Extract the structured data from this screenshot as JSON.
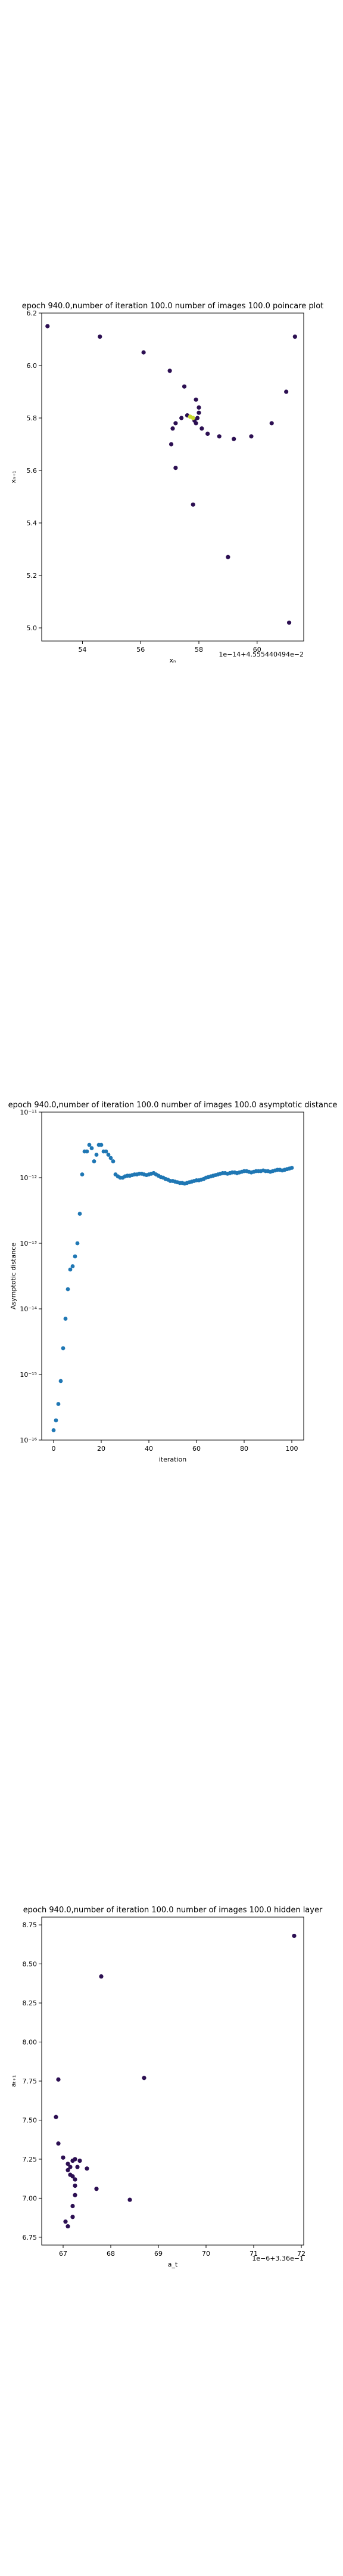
{
  "chart_data": [
    {
      "type": "scatter",
      "title": "epoch 940.0,number of iteration 100.0  number of images 100.0 poincare plot",
      "xlabel": "xₙ",
      "ylabel": "xₙ₊₁",
      "offset_text": "1e−14+4.555440494e−2",
      "xlim": [
        52.6,
        61.6
      ],
      "ylim": [
        4.95,
        6.2
      ],
      "xticks": [
        54,
        56,
        58,
        60
      ],
      "yticks": [
        5.0,
        5.2,
        5.4,
        5.6,
        5.8,
        6.0,
        6.2
      ],
      "grid": false,
      "colors": {
        "point": "#2c0f52",
        "highlight": "#c8d92e"
      },
      "points": [
        {
          "x": 52.8,
          "y": 6.15
        },
        {
          "x": 54.6,
          "y": 6.11
        },
        {
          "x": 56.1,
          "y": 6.05
        },
        {
          "x": 57.0,
          "y": 5.98
        },
        {
          "x": 57.5,
          "y": 5.92
        },
        {
          "x": 57.9,
          "y": 5.87
        },
        {
          "x": 58.0,
          "y": 5.84
        },
        {
          "x": 58.0,
          "y": 5.82
        },
        {
          "x": 57.6,
          "y": 5.81
        },
        {
          "x": 57.4,
          "y": 5.8
        },
        {
          "x": 57.2,
          "y": 5.78
        },
        {
          "x": 57.1,
          "y": 5.76
        },
        {
          "x": 57.05,
          "y": 5.7
        },
        {
          "x": 57.2,
          "y": 5.61
        },
        {
          "x": 57.8,
          "y": 5.47
        },
        {
          "x": 59.0,
          "y": 5.27
        },
        {
          "x": 61.1,
          "y": 5.02
        },
        {
          "x": 61.3,
          "y": 6.11
        },
        {
          "x": 61.0,
          "y": 5.9
        },
        {
          "x": 60.5,
          "y": 5.78
        },
        {
          "x": 59.8,
          "y": 5.73
        },
        {
          "x": 59.2,
          "y": 5.72
        },
        {
          "x": 58.7,
          "y": 5.73
        },
        {
          "x": 58.3,
          "y": 5.74
        },
        {
          "x": 58.1,
          "y": 5.76
        },
        {
          "x": 57.9,
          "y": 5.78
        },
        {
          "x": 57.85,
          "y": 5.79
        },
        {
          "x": 57.95,
          "y": 5.8
        }
      ],
      "highlight_points": [
        {
          "x": 57.7,
          "y": 5.805
        },
        {
          "x": 57.8,
          "y": 5.8
        }
      ]
    },
    {
      "type": "scatter",
      "title": "epoch 940.0,number of iteration 100.0  number of images 100.0 asymptotic distance",
      "xlabel": "iteration",
      "ylabel": "Asymptotic distance",
      "yscale": "log",
      "xlim": [
        -5,
        105
      ],
      "ylim_log10": [
        -16,
        -11
      ],
      "xticks": [
        0,
        20,
        40,
        60,
        80,
        100
      ],
      "yticks": [
        "10⁻¹⁶",
        "10⁻¹⁵",
        "10⁻¹⁴",
        "10⁻¹³",
        "10⁻¹²",
        "10⁻¹¹"
      ],
      "grid": false,
      "colors": {
        "point": "#1f77b4"
      },
      "x": [
        0,
        1,
        2,
        3,
        4,
        5,
        6,
        7,
        8,
        9,
        10,
        11,
        12,
        13,
        14,
        15,
        16,
        17,
        18,
        19,
        20,
        21,
        22,
        23,
        24,
        25,
        26,
        27,
        28,
        29,
        30,
        31,
        32,
        33,
        34,
        35,
        36,
        37,
        38,
        39,
        40,
        41,
        42,
        43,
        44,
        45,
        46,
        47,
        48,
        49,
        50,
        51,
        52,
        53,
        54,
        55,
        56,
        57,
        58,
        59,
        60,
        61,
        62,
        63,
        64,
        65,
        66,
        67,
        68,
        69,
        70,
        71,
        72,
        73,
        74,
        75,
        76,
        77,
        78,
        79,
        80,
        81,
        82,
        83,
        84,
        85,
        86,
        87,
        88,
        89,
        90,
        91,
        92,
        93,
        94,
        95,
        96,
        97,
        98,
        99,
        100
      ],
      "y_log10": [
        -15.85,
        -15.7,
        -15.45,
        -15.1,
        -14.6,
        -14.15,
        -13.7,
        -13.4,
        -13.35,
        -13.2,
        -13.0,
        -12.55,
        -11.95,
        -11.6,
        -11.6,
        -11.5,
        -11.55,
        -11.75,
        -11.65,
        -11.5,
        -11.5,
        -11.6,
        -11.6,
        -11.65,
        -11.7,
        -11.75,
        -11.95,
        -11.98,
        -12.0,
        -12.0,
        -11.98,
        -11.97,
        -11.97,
        -11.96,
        -11.95,
        -11.95,
        -11.94,
        -11.94,
        -11.95,
        -11.96,
        -11.95,
        -11.94,
        -11.93,
        -11.95,
        -11.97,
        -11.99,
        -12.0,
        -12.02,
        -12.03,
        -12.05,
        -12.05,
        -12.06,
        -12.07,
        -12.08,
        -12.08,
        -12.09,
        -12.08,
        -12.07,
        -12.06,
        -12.05,
        -12.04,
        -12.04,
        -12.03,
        -12.02,
        -12.0,
        -11.99,
        -11.98,
        -11.97,
        -11.96,
        -11.95,
        -11.94,
        -11.93,
        -11.93,
        -11.94,
        -11.93,
        -11.92,
        -11.92,
        -11.93,
        -11.92,
        -11.91,
        -11.9,
        -11.9,
        -11.91,
        -11.92,
        -11.91,
        -11.9,
        -11.9,
        -11.9,
        -11.89,
        -11.9,
        -11.9,
        -11.91,
        -11.9,
        -11.89,
        -11.88,
        -11.88,
        -11.89,
        -11.88,
        -11.87,
        -11.86,
        -11.85
      ]
    },
    {
      "type": "scatter",
      "title": "epoch 940.0,number of iteration 100.0  number of images 100.0 hidden layer",
      "xlabel": "a_t",
      "ylabel": "aₜ₊₁",
      "offset_text": "1e−6+3.36e−1",
      "xlim": [
        66.55,
        72.05
      ],
      "ylim": [
        6.7,
        8.8
      ],
      "xticks": [
        67,
        68,
        69,
        70,
        71,
        72
      ],
      "yticks": [
        6.75,
        7.0,
        7.25,
        7.5,
        7.75,
        8.0,
        8.25,
        8.5,
        8.75
      ],
      "grid": false,
      "colors": {
        "point": "#2c0f52"
      },
      "points": [
        {
          "x": 71.85,
          "y": 8.68
        },
        {
          "x": 67.8,
          "y": 8.42
        },
        {
          "x": 68.7,
          "y": 7.77
        },
        {
          "x": 66.9,
          "y": 7.76
        },
        {
          "x": 66.85,
          "y": 7.52
        },
        {
          "x": 66.9,
          "y": 7.35
        },
        {
          "x": 67.0,
          "y": 7.26
        },
        {
          "x": 67.1,
          "y": 7.22
        },
        {
          "x": 67.2,
          "y": 7.24
        },
        {
          "x": 67.25,
          "y": 7.25
        },
        {
          "x": 67.35,
          "y": 7.24
        },
        {
          "x": 67.5,
          "y": 7.19
        },
        {
          "x": 67.1,
          "y": 7.18
        },
        {
          "x": 67.15,
          "y": 7.15
        },
        {
          "x": 67.2,
          "y": 7.14
        },
        {
          "x": 67.25,
          "y": 7.12
        },
        {
          "x": 67.25,
          "y": 7.08
        },
        {
          "x": 67.7,
          "y": 7.06
        },
        {
          "x": 67.25,
          "y": 7.02
        },
        {
          "x": 68.4,
          "y": 6.99
        },
        {
          "x": 67.2,
          "y": 6.95
        },
        {
          "x": 67.2,
          "y": 6.88
        },
        {
          "x": 67.05,
          "y": 6.85
        },
        {
          "x": 67.1,
          "y": 6.82
        },
        {
          "x": 67.15,
          "y": 7.2
        },
        {
          "x": 67.3,
          "y": 7.2
        }
      ]
    }
  ]
}
